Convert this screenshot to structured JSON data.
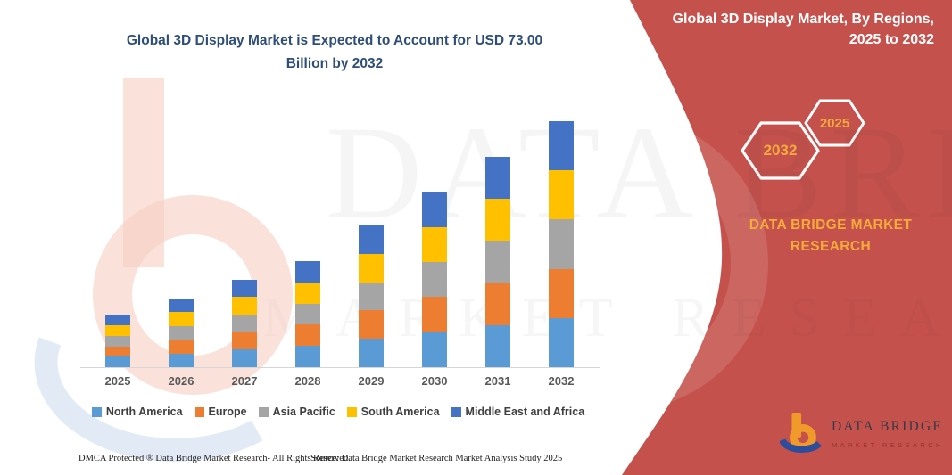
{
  "headline": {
    "line1": "Global 3D Display Market is Expected to Account for USD 73.00",
    "line2": "Billion by 2032"
  },
  "panel": {
    "heading_line1": "Global 3D Display Market, By Regions,",
    "heading_line2": "2025 to 2032",
    "badges": [
      {
        "year": "2032"
      },
      {
        "year": "2025"
      }
    ],
    "brand_line1": "DATA BRIDGE MARKET",
    "brand_line2": "RESEARCH",
    "bg_color": "#C5514C",
    "accent_color": "#F3AC3B"
  },
  "watermark": {
    "row1": "DATA BRIDGE",
    "row2": "MARKET RESEARCH"
  },
  "chart_data": {
    "type": "bar",
    "stacked": true,
    "title": "Global 3D Display Market is Expected to Account for USD 73.00 Billion by 2032",
    "unit": "USD Billion",
    "xlabel": "",
    "ylabel": "",
    "ylim": [
      0,
      73
    ],
    "grid": false,
    "legend_position": "bottom",
    "categories": [
      "2025",
      "2026",
      "2027",
      "2028",
      "2029",
      "2030",
      "2031",
      "2032"
    ],
    "totals_usd_billion": [
      15.5,
      20.5,
      26.0,
      31.5,
      42.0,
      52.0,
      62.5,
      73.0
    ],
    "series": [
      {
        "name": "North America",
        "color": "#5B9BD5",
        "values": [
          3.1,
          4.1,
          5.2,
          6.3,
          8.4,
          10.4,
          12.5,
          14.6
        ]
      },
      {
        "name": "Europe",
        "color": "#ED7D31",
        "values": [
          3.1,
          4.1,
          5.2,
          6.3,
          8.4,
          10.4,
          12.5,
          14.6
        ]
      },
      {
        "name": "Asia Pacific",
        "color": "#A5A5A5",
        "values": [
          3.1,
          4.1,
          5.2,
          6.3,
          8.4,
          10.4,
          12.5,
          14.6
        ]
      },
      {
        "name": "South America",
        "color": "#FFC000",
        "values": [
          3.1,
          4.1,
          5.2,
          6.3,
          8.4,
          10.4,
          12.5,
          14.6
        ]
      },
      {
        "name": "Middle East and Africa",
        "color": "#4472C4",
        "values": [
          3.1,
          4.1,
          5.2,
          6.3,
          8.4,
          10.4,
          12.5,
          14.6
        ]
      }
    ]
  },
  "logo": {
    "name": "DATA BRIDGE",
    "subtitle": "MARKET RESEARCH"
  },
  "footer": {
    "left": "DMCA Protected ® Data Bridge Market Research-  All Rights Reserved.",
    "right": "Source: Data Bridge Market Research  Market Analysis Study 2025"
  }
}
